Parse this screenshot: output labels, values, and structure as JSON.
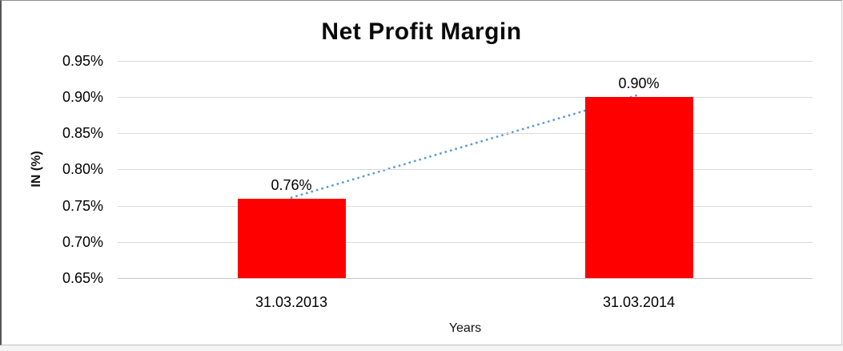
{
  "chart_data": {
    "type": "bar",
    "title": "Net Profit Margin",
    "categories": [
      "31.03.2013",
      "31.03.2014"
    ],
    "values": [
      0.76,
      0.9
    ],
    "data_labels": [
      "0.76%",
      "0.90%"
    ],
    "series_name": "Net Profit Margin",
    "xlabel": "Years",
    "ylabel": "IN (%)",
    "ylim": [
      0.65,
      0.95
    ],
    "y_ticks": [
      {
        "value": 0.95,
        "label": "0.95%"
      },
      {
        "value": 0.9,
        "label": "0.90%"
      },
      {
        "value": 0.85,
        "label": "0.85%"
      },
      {
        "value": 0.8,
        "label": "0.80%"
      },
      {
        "value": 0.75,
        "label": "0.75%"
      },
      {
        "value": 0.7,
        "label": "0.70%"
      },
      {
        "value": 0.65,
        "label": "0.65%"
      }
    ],
    "grid": true,
    "legend": "none",
    "trendline": {
      "type": "linear",
      "style": "dotted",
      "from_value": 0.76,
      "to_value": 0.9
    }
  },
  "colors": {
    "bar": "#ff0000",
    "trendline": "#5b9bd5",
    "gridline": "#d9d9d9",
    "axis_line": "#c9c9c9",
    "text": "#000000",
    "background": "#ffffff"
  }
}
